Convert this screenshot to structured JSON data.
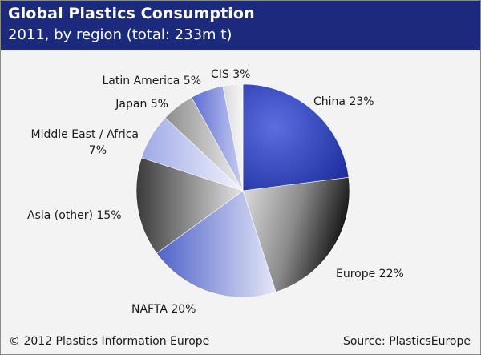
{
  "header": {
    "title": "Global Plastics Consumption",
    "subtitle": "2011, by region (total: 233m t)"
  },
  "footer": {
    "copyright": "© 2012 Plastics Information Europe",
    "source": "Source: PlasticsEurope"
  },
  "colors": {
    "header_bg": "#1b2a7d",
    "blue_slice": "#2a3aa8",
    "dark_slice": "#1a1a1a"
  },
  "chart_data": {
    "type": "pie",
    "title": "Global Plastics Consumption",
    "subtitle": "2011, by region (total: 233m t)",
    "slices": [
      {
        "label": "China 23%",
        "value": 23
      },
      {
        "label": "Europe 22%",
        "value": 22
      },
      {
        "label": "NAFTA 20%",
        "value": 20
      },
      {
        "label": "Asia (other) 15%",
        "value": 15
      },
      {
        "label_lines": [
          "Middle East / Africa",
          "7%"
        ],
        "value": 7
      },
      {
        "label": "Japan 5%",
        "value": 5
      },
      {
        "label": "Latin America 5%",
        "value": 5
      },
      {
        "label": "CIS 3%",
        "value": 3
      }
    ]
  }
}
